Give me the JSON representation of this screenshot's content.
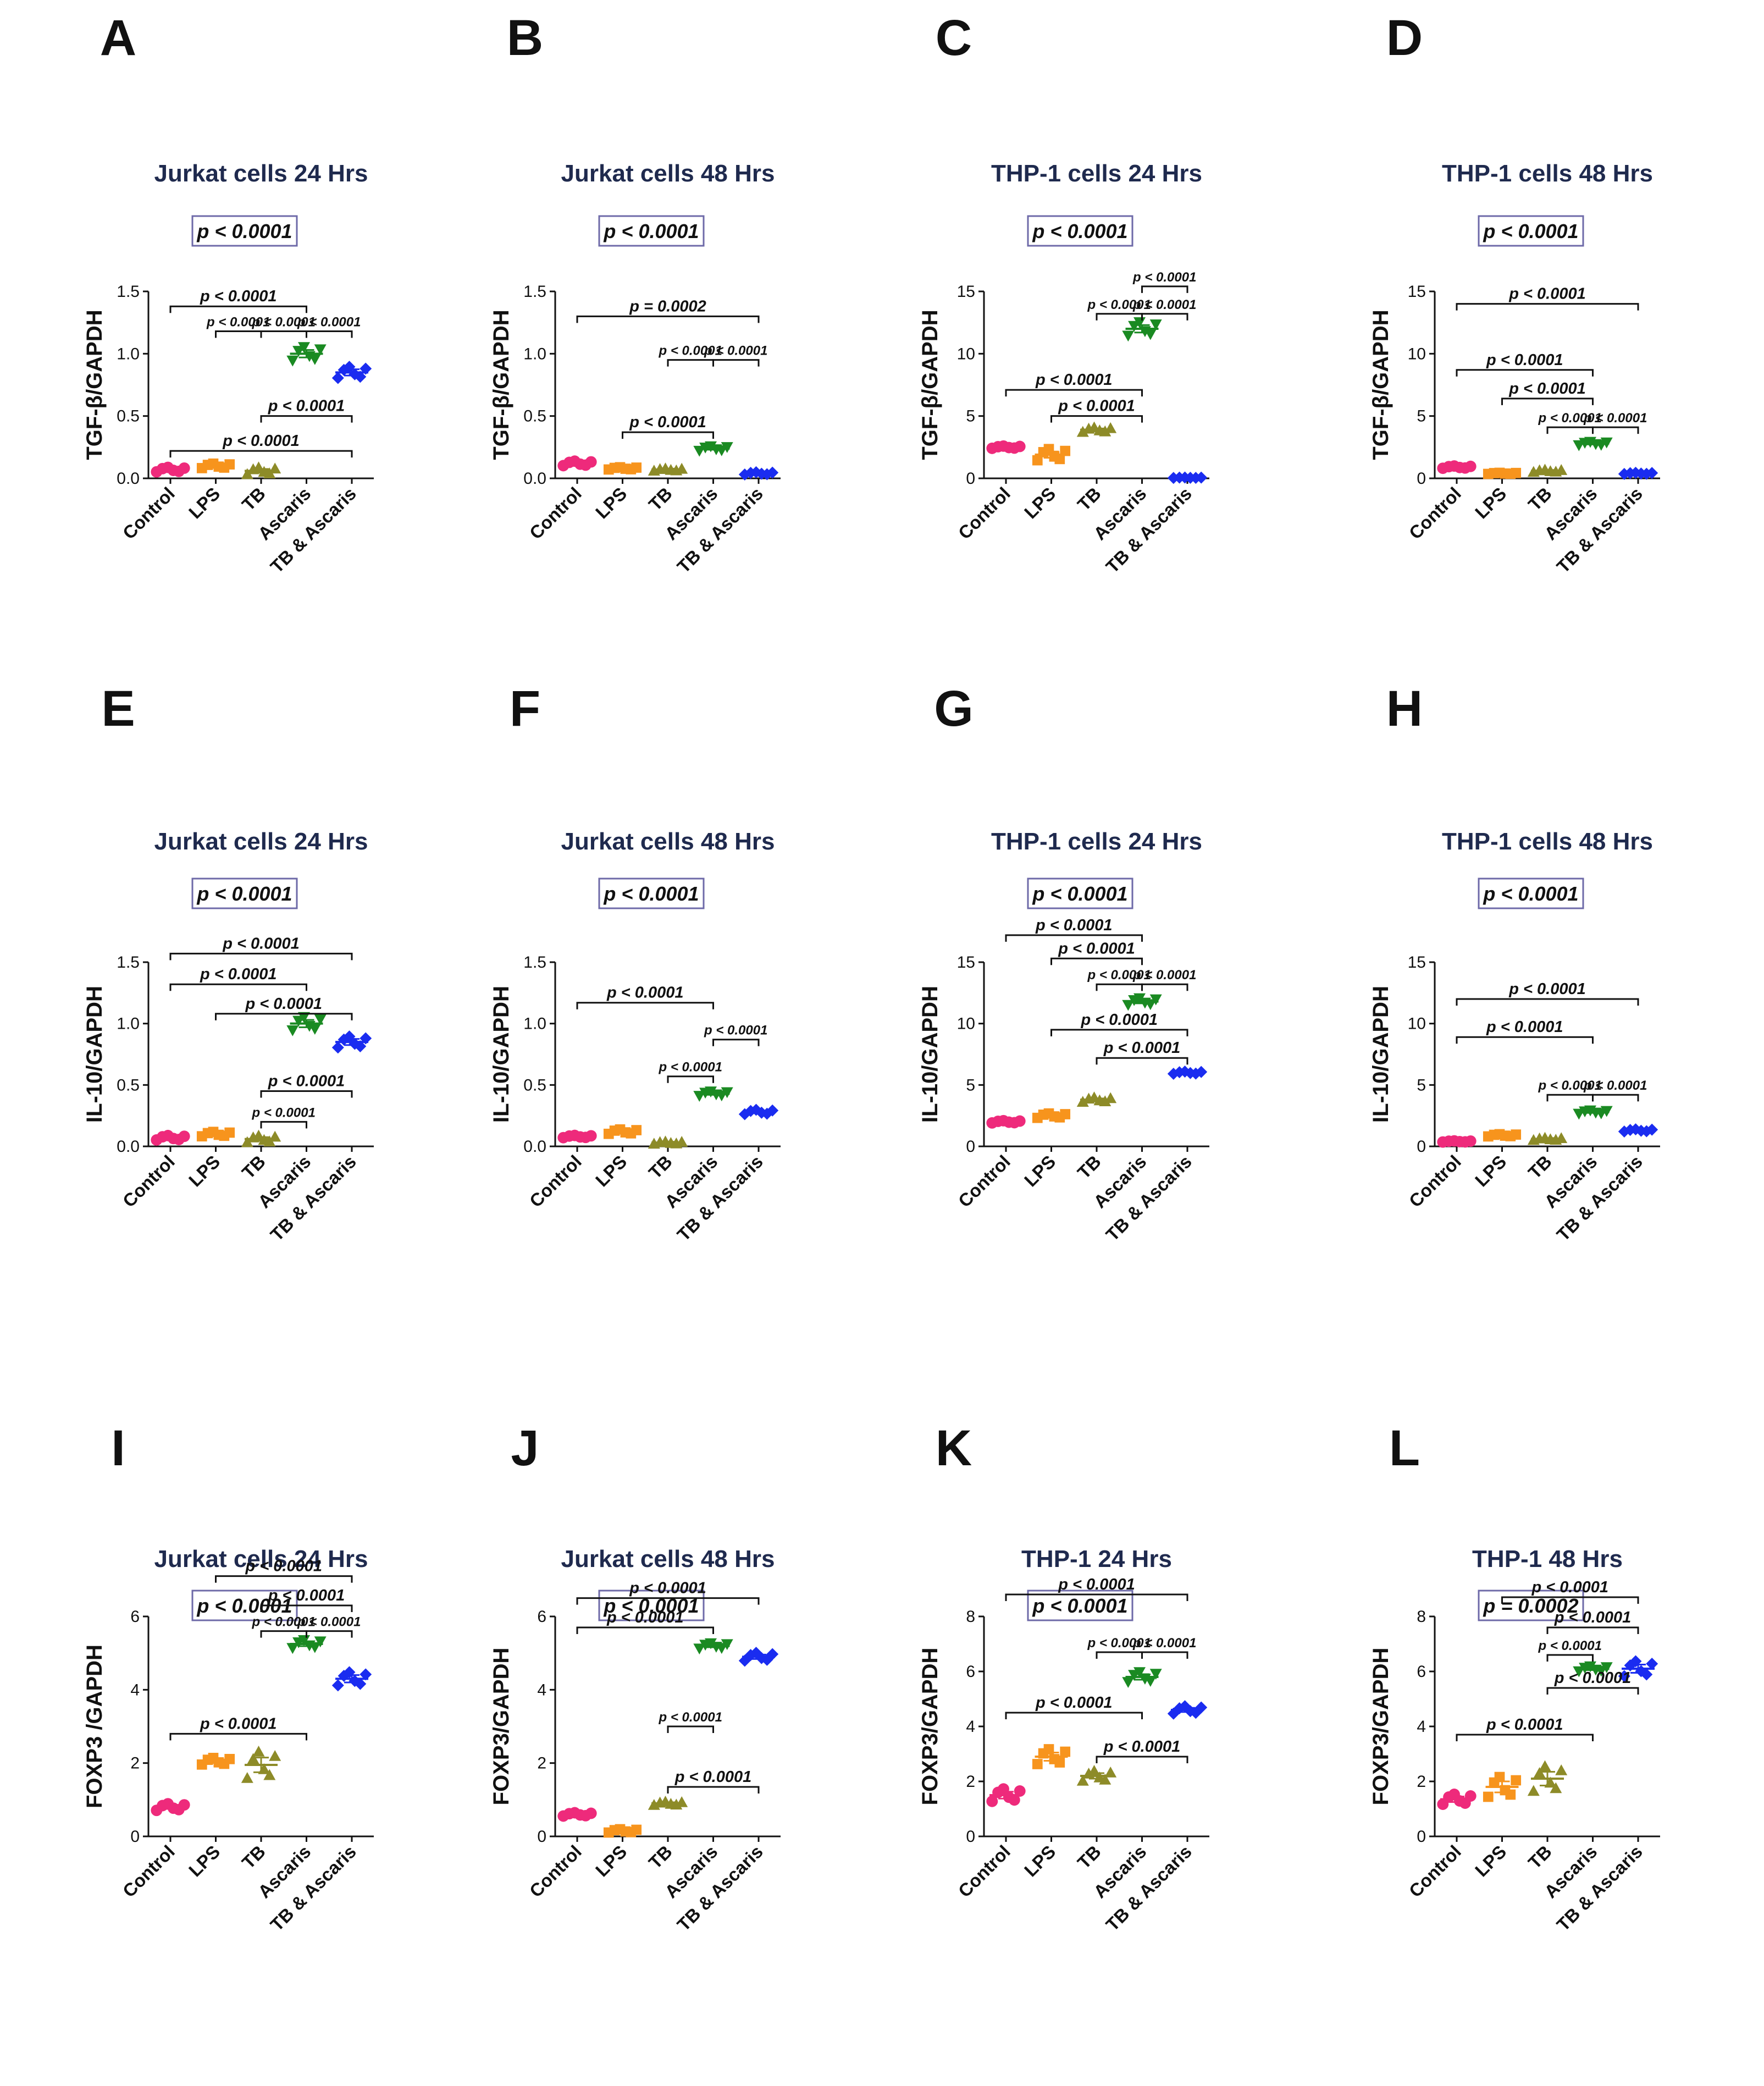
{
  "figure": {
    "categories": [
      "Control",
      "LPS",
      "TB",
      "Ascaris",
      "TB & Ascaris"
    ],
    "colors": [
      "#ee2a7b",
      "#f7941d",
      "#8d8b28",
      "#1a8a22",
      "#1a2cf0"
    ]
  },
  "chart_data": [
    {
      "id": "A",
      "label": "A",
      "type": "scatter",
      "title": "Jurkat cells 24 Hrs",
      "ylabel": "TGF-β/GAPDH",
      "ylim": [
        0,
        1.5
      ],
      "yticks": [
        0.0,
        0.5,
        1.0,
        1.5
      ],
      "yticklabels": [
        "0.0",
        "0.5",
        "1.0",
        "1.5"
      ],
      "categories": [
        "Control",
        "LPS",
        "TB",
        "Ascaris",
        "TB & Ascaris"
      ],
      "values": [
        0.07,
        0.1,
        0.06,
        1.0,
        0.85
      ],
      "spread": [
        0.02,
        0.02,
        0.03,
        0.06,
        0.05
      ],
      "omnibus": "p < 0.0001",
      "comparisons": [
        {
          "from": 0,
          "to": 3,
          "y": 1.38,
          "label": "p < 0.0001"
        },
        {
          "from": 1,
          "to": 2,
          "y": 1.18,
          "label": "p < 0.0001"
        },
        {
          "from": 2,
          "to": 3,
          "y": 1.18,
          "label": "p < 0.0001"
        },
        {
          "from": 3,
          "to": 4,
          "y": 1.18,
          "label": "p < 0.0001"
        },
        {
          "from": 2,
          "to": 4,
          "y": 0.5,
          "label": "p < 0.0001"
        },
        {
          "from": 0,
          "to": 4,
          "y": 0.22,
          "label": "p < 0.0001"
        }
      ]
    },
    {
      "id": "B",
      "label": "B",
      "type": "scatter",
      "title": "Jurkat cells 48 Hrs",
      "ylabel": "TGF-β/GAPDH",
      "ylim": [
        0,
        1.5
      ],
      "yticks": [
        0.0,
        0.5,
        1.0,
        1.5
      ],
      "yticklabels": [
        "0.0",
        "0.5",
        "1.0",
        "1.5"
      ],
      "categories": [
        "Control",
        "LPS",
        "TB",
        "Ascaris",
        "TB & Ascaris"
      ],
      "values": [
        0.12,
        0.08,
        0.07,
        0.24,
        0.04
      ],
      "spread": [
        0.02,
        0.01,
        0.01,
        0.02,
        0.01
      ],
      "omnibus": "p < 0.0001",
      "comparisons": [
        {
          "from": 0,
          "to": 4,
          "y": 1.3,
          "label": "p = 0.0002"
        },
        {
          "from": 2,
          "to": 3,
          "y": 0.95,
          "label": "p < 0.0001"
        },
        {
          "from": 3,
          "to": 4,
          "y": 0.95,
          "label": "p < 0.0001"
        },
        {
          "from": 1,
          "to": 3,
          "y": 0.37,
          "label": "p < 0.0001"
        }
      ]
    },
    {
      "id": "C",
      "label": "C",
      "type": "scatter",
      "title": "THP-1 cells 24 Hrs",
      "ylabel": "TGF-β/GAPDH",
      "ylim": [
        0,
        15
      ],
      "yticks": [
        0,
        5,
        10,
        15
      ],
      "yticklabels": [
        "0",
        "5",
        "10",
        "15"
      ],
      "categories": [
        "Control",
        "LPS",
        "TB",
        "Ascaris",
        "TB & Ascaris"
      ],
      "values": [
        2.5,
        1.9,
        3.9,
        12.0,
        0.05
      ],
      "spread": [
        0.1,
        0.5,
        0.2,
        0.6,
        0.02
      ],
      "omnibus": "p < 0.0001",
      "comparisons": [
        {
          "from": 3,
          "to": 4,
          "y": 15.4,
          "label": "p < 0.0001"
        },
        {
          "from": 2,
          "to": 3,
          "y": 13.2,
          "label": "p < 0.0001"
        },
        {
          "from": 3,
          "to": 4,
          "y": 13.2,
          "label": "p < 0.0001"
        },
        {
          "from": 0,
          "to": 3,
          "y": 7.1,
          "label": "p < 0.0001"
        },
        {
          "from": 1,
          "to": 3,
          "y": 5.0,
          "label": "p < 0.0001"
        }
      ]
    },
    {
      "id": "D",
      "label": "D",
      "type": "scatter",
      "title": "THP-1 cells 48 Hrs",
      "ylabel": "TGF-β/GAPDH",
      "ylim": [
        0,
        15
      ],
      "yticks": [
        0,
        5,
        10,
        15
      ],
      "yticklabels": [
        "0",
        "5",
        "10",
        "15"
      ],
      "categories": [
        "Control",
        "LPS",
        "TB",
        "Ascaris",
        "TB & Ascaris"
      ],
      "values": [
        0.9,
        0.4,
        0.6,
        2.8,
        0.4
      ],
      "spread": [
        0.1,
        0.05,
        0.1,
        0.15,
        0.05
      ],
      "omnibus": "p < 0.0001",
      "comparisons": [
        {
          "from": 0,
          "to": 4,
          "y": 14.0,
          "label": "p < 0.0001"
        },
        {
          "from": 0,
          "to": 3,
          "y": 8.7,
          "label": "p < 0.0001"
        },
        {
          "from": 1,
          "to": 3,
          "y": 6.4,
          "label": "p < 0.0001"
        },
        {
          "from": 2,
          "to": 3,
          "y": 4.1,
          "label": "p < 0.0001"
        },
        {
          "from": 3,
          "to": 4,
          "y": 4.1,
          "label": "p < 0.0001"
        }
      ]
    },
    {
      "id": "E",
      "label": "E",
      "type": "scatter",
      "title": "Jurkat cells 24 Hrs",
      "ylabel": "IL-10/GAPDH",
      "ylim": [
        0,
        1.5
      ],
      "yticks": [
        0.0,
        0.5,
        1.0,
        1.5
      ],
      "yticklabels": [
        "0.0",
        "0.5",
        "1.0",
        "1.5"
      ],
      "categories": [
        "Control",
        "LPS",
        "TB",
        "Ascaris",
        "TB & Ascaris"
      ],
      "values": [
        0.07,
        0.1,
        0.06,
        1.0,
        0.85
      ],
      "spread": [
        0.02,
        0.02,
        0.03,
        0.06,
        0.05
      ],
      "omnibus": "p < 0.0001",
      "comparisons": [
        {
          "from": 0,
          "to": 4,
          "y": 1.57,
          "label": "p < 0.0001"
        },
        {
          "from": 0,
          "to": 3,
          "y": 1.32,
          "label": "p < 0.0001"
        },
        {
          "from": 1,
          "to": 4,
          "y": 1.08,
          "label": "p < 0.0001"
        },
        {
          "from": 2,
          "to": 4,
          "y": 0.45,
          "label": "p < 0.0001"
        },
        {
          "from": 2,
          "to": 3,
          "y": 0.2,
          "label": "p < 0.0001"
        }
      ]
    },
    {
      "id": "F",
      "label": "F",
      "type": "scatter",
      "title": "Jurkat cells 48 Hrs",
      "ylabel": "IL-10/GAPDH",
      "ylim": [
        0,
        1.5
      ],
      "yticks": [
        0.0,
        0.5,
        1.0,
        1.5
      ],
      "yticklabels": [
        "0.0",
        "0.5",
        "1.0",
        "1.5"
      ],
      "categories": [
        "Control",
        "LPS",
        "TB",
        "Ascaris",
        "TB & Ascaris"
      ],
      "values": [
        0.08,
        0.12,
        0.03,
        0.43,
        0.28
      ],
      "spread": [
        0.01,
        0.02,
        0.01,
        0.02,
        0.02
      ],
      "omnibus": "p < 0.0001",
      "comparisons": [
        {
          "from": 0,
          "to": 3,
          "y": 1.17,
          "label": "p < 0.0001"
        },
        {
          "from": 3,
          "to": 4,
          "y": 0.87,
          "label": "p < 0.0001"
        },
        {
          "from": 2,
          "to": 3,
          "y": 0.57,
          "label": "p < 0.0001"
        }
      ]
    },
    {
      "id": "G",
      "label": "G",
      "type": "scatter",
      "title": "THP-1 cells 24 Hrs",
      "ylabel": "IL-10/GAPDH",
      "ylim": [
        0,
        15
      ],
      "yticks": [
        0,
        5,
        10,
        15
      ],
      "yticklabels": [
        "0",
        "5",
        "10",
        "15"
      ],
      "categories": [
        "Control",
        "LPS",
        "TB",
        "Ascaris",
        "TB & Ascaris"
      ],
      "values": [
        2.0,
        2.5,
        3.8,
        11.8,
        6.0
      ],
      "spread": [
        0.1,
        0.2,
        0.2,
        0.3,
        0.1
      ],
      "omnibus": "p < 0.0001",
      "comparisons": [
        {
          "from": 0,
          "to": 3,
          "y": 17.2,
          "label": "p < 0.0001"
        },
        {
          "from": 1,
          "to": 3,
          "y": 15.3,
          "label": "p < 0.0001"
        },
        {
          "from": 2,
          "to": 3,
          "y": 13.2,
          "label": "p < 0.0001"
        },
        {
          "from": 3,
          "to": 4,
          "y": 13.2,
          "label": "p < 0.0001"
        },
        {
          "from": 1,
          "to": 4,
          "y": 9.5,
          "label": "p < 0.0001"
        },
        {
          "from": 2,
          "to": 4,
          "y": 7.2,
          "label": "p < 0.0001"
        }
      ]
    },
    {
      "id": "H",
      "label": "H",
      "type": "scatter",
      "title": "THP-1 cells 48 Hrs",
      "ylabel": "IL-10/GAPDH",
      "ylim": [
        0,
        15
      ],
      "yticks": [
        0,
        5,
        10,
        15
      ],
      "yticklabels": [
        "0",
        "5",
        "10",
        "15"
      ],
      "categories": [
        "Control",
        "LPS",
        "TB",
        "Ascaris",
        "TB & Ascaris"
      ],
      "values": [
        0.4,
        0.9,
        0.6,
        2.8,
        1.3
      ],
      "spread": [
        0.05,
        0.1,
        0.1,
        0.15,
        0.1
      ],
      "omnibus": "p < 0.0001",
      "comparisons": [
        {
          "from": 0,
          "to": 4,
          "y": 12.0,
          "label": "p < 0.0001"
        },
        {
          "from": 0,
          "to": 3,
          "y": 8.9,
          "label": "p < 0.0001"
        },
        {
          "from": 2,
          "to": 3,
          "y": 4.2,
          "label": "p < 0.0001"
        },
        {
          "from": 3,
          "to": 4,
          "y": 4.2,
          "label": "p < 0.0001"
        }
      ]
    },
    {
      "id": "I",
      "label": "I",
      "type": "scatter",
      "title": "Jurkat cells 24 Hrs",
      "ylabel": "FOXP3 /GAPDH",
      "ylim": [
        0,
        6
      ],
      "yticks": [
        0,
        2,
        4,
        6
      ],
      "yticklabels": [
        "0",
        "2",
        "4",
        "6"
      ],
      "categories": [
        "Control",
        "LPS",
        "TB",
        "Ascaris",
        "TB & Ascaris"
      ],
      "values": [
        0.8,
        2.05,
        1.95,
        5.25,
        4.3
      ],
      "spread": [
        0.1,
        0.1,
        0.4,
        0.12,
        0.2
      ],
      "omnibus": "p < 0.0001",
      "comparisons": [
        {
          "from": 1,
          "to": 4,
          "y": 7.1,
          "label": "p < 0.0001"
        },
        {
          "from": 2,
          "to": 4,
          "y": 6.3,
          "label": "p < 0.0001"
        },
        {
          "from": 2,
          "to": 3,
          "y": 5.6,
          "label": "p < 0.0001"
        },
        {
          "from": 3,
          "to": 4,
          "y": 5.6,
          "label": "p < 0.0001"
        },
        {
          "from": 0,
          "to": 3,
          "y": 2.8,
          "label": "p < 0.0001"
        }
      ]
    },
    {
      "id": "J",
      "label": "J",
      "type": "scatter",
      "title": "Jurkat cells 48 Hrs",
      "ylabel": "FOXP3/GAPDH",
      "ylim": [
        0,
        6
      ],
      "yticks": [
        0,
        2,
        4,
        6
      ],
      "yticklabels": [
        "0",
        "2",
        "4",
        "6"
      ],
      "categories": [
        "Control",
        "LPS",
        "TB",
        "Ascaris",
        "TB & Ascaris"
      ],
      "values": [
        0.6,
        0.15,
        0.9,
        5.2,
        4.9
      ],
      "spread": [
        0.05,
        0.05,
        0.05,
        0.08,
        0.12
      ],
      "omnibus": "p < 0.0001",
      "comparisons": [
        {
          "from": 0,
          "to": 4,
          "y": 6.5,
          "label": "p < 0.0001"
        },
        {
          "from": 0,
          "to": 3,
          "y": 5.7,
          "label": "p < 0.0001"
        },
        {
          "from": 2,
          "to": 3,
          "y": 3.0,
          "label": "p < 0.0001"
        },
        {
          "from": 2,
          "to": 4,
          "y": 1.35,
          "label": "p < 0.0001"
        }
      ]
    },
    {
      "id": "K",
      "label": "K",
      "type": "scatter",
      "title": "THP-1  24 Hrs",
      "ylabel": "FOXP3/GAPDH",
      "ylim": [
        0,
        8
      ],
      "yticks": [
        0,
        2,
        4,
        6,
        8
      ],
      "yticklabels": [
        "0",
        "2",
        "4",
        "6",
        "8"
      ],
      "categories": [
        "Control",
        "LPS",
        "TB",
        "Ascaris",
        "TB & Ascaris"
      ],
      "values": [
        1.5,
        2.9,
        2.2,
        5.8,
        4.6
      ],
      "spread": [
        0.25,
        0.3,
        0.2,
        0.2,
        0.15
      ],
      "omnibus": "p < 0.0001",
      "comparisons": [
        {
          "from": 0,
          "to": 4,
          "y": 8.8,
          "label": "p < 0.0001"
        },
        {
          "from": 2,
          "to": 3,
          "y": 6.7,
          "label": "p < 0.0001"
        },
        {
          "from": 3,
          "to": 4,
          "y": 6.7,
          "label": "p < 0.0001"
        },
        {
          "from": 0,
          "to": 3,
          "y": 4.5,
          "label": "p < 0.0001"
        },
        {
          "from": 2,
          "to": 4,
          "y": 2.9,
          "label": "p < 0.0001"
        }
      ]
    },
    {
      "id": "L",
      "label": "L",
      "type": "scatter",
      "title": "THP-1 48 Hrs",
      "ylabel": "FOXP3/GAPDH",
      "ylim": [
        0,
        8
      ],
      "yticks": [
        0,
        2,
        4,
        6,
        8
      ],
      "yticklabels": [
        "0",
        "2",
        "4",
        "6",
        "8"
      ],
      "categories": [
        "Control",
        "LPS",
        "TB",
        "Ascaris",
        "TB & Ascaris"
      ],
      "values": [
        1.35,
        1.8,
        2.1,
        6.1,
        6.1
      ],
      "spread": [
        0.2,
        0.4,
        0.5,
        0.1,
        0.3
      ],
      "omnibus": "p = 0.0002",
      "comparisons": [
        {
          "from": 1,
          "to": 4,
          "y": 8.7,
          "label": "p < 0.0001"
        },
        {
          "from": 2,
          "to": 4,
          "y": 7.6,
          "label": "p < 0.0001"
        },
        {
          "from": 2,
          "to": 3,
          "y": 6.6,
          "label": "p < 0.0001"
        },
        {
          "from": 2,
          "to": 4,
          "y": 5.4,
          "label": "p < 0.0001"
        },
        {
          "from": 0,
          "to": 3,
          "y": 3.7,
          "label": "p < 0.0001"
        }
      ]
    }
  ]
}
